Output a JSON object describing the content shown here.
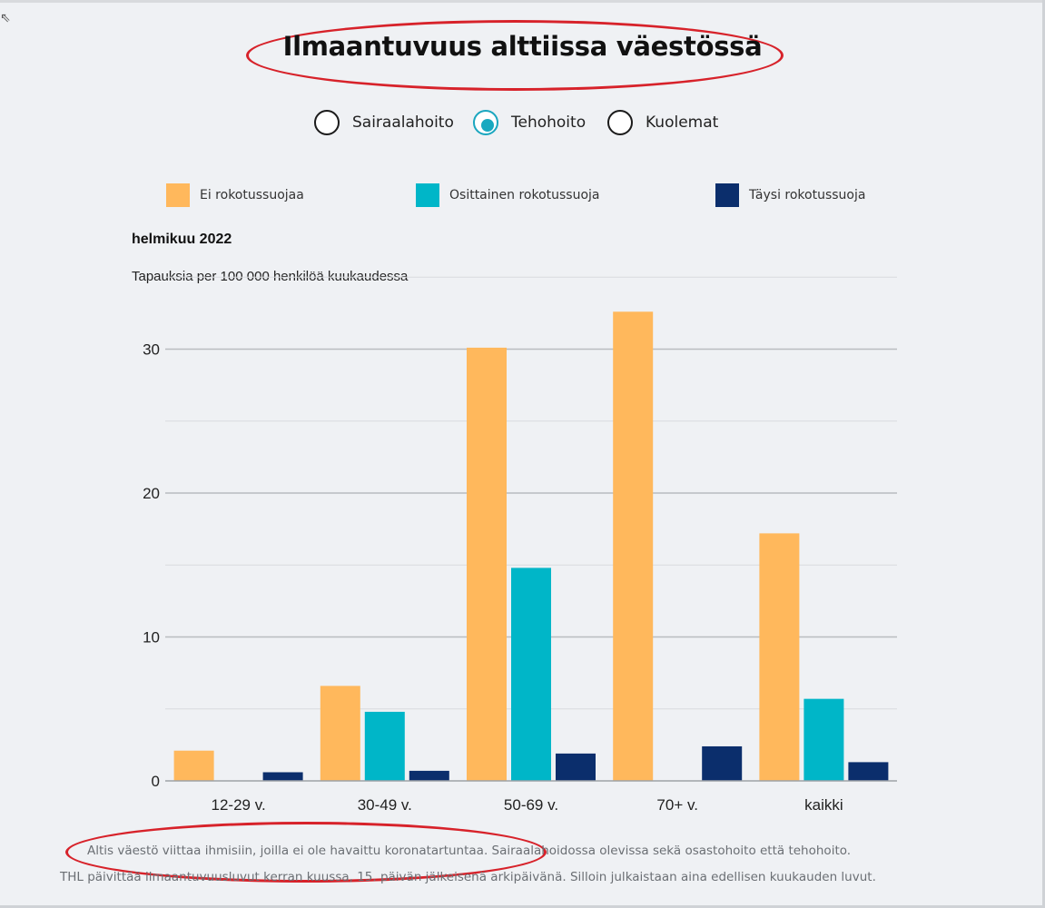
{
  "title": "Ilmaantuvuus alttiissa väestössä",
  "radio_options": [
    {
      "label": "Sairaalahoito",
      "selected": false
    },
    {
      "label": "Tehohoito",
      "selected": true
    },
    {
      "label": "Kuolemat",
      "selected": false
    }
  ],
  "legend": [
    {
      "label": "Ei rokotussuojaa",
      "color": "#ffb85c"
    },
    {
      "label": "Osittainen rokotussuoja",
      "color": "#00b6c8"
    },
    {
      "label": "Täysi rokotussuoja",
      "color": "#0b2e6c"
    }
  ],
  "period": "helmikuu 2022",
  "unit_label": "Tapauksia per 100 000 henkilöä kuukaudessa",
  "footnote_1": "Altis väestö viittaa ihmisiin, joilla ei ole havaittu koronatartuntaa. Sairaalahoidossa olevissa sekä osastohoito että tehohoito.",
  "footnote_2": "THL päivittää ilmaantuvuusluvut kerran kuussa, 15. päivän jälkeisenä arkipäivänä. Silloin julkaistaan aina edellisen kuukauden luvut.",
  "chart_data": {
    "type": "bar",
    "categories": [
      "12-29 v.",
      "30-49 v.",
      "50-69 v.",
      "70+ v.",
      "kaikki"
    ],
    "series": [
      {
        "name": "Ei rokotussuojaa",
        "color": "#ffb85c",
        "values": [
          2.1,
          6.6,
          30.1,
          32.6,
          17.2
        ]
      },
      {
        "name": "Osittainen rokotussuoja",
        "color": "#00b6c8",
        "values": [
          0,
          4.8,
          14.8,
          0,
          5.7
        ]
      },
      {
        "name": "Täysi rokotussuoja",
        "color": "#0b2e6c",
        "values": [
          0.6,
          0.7,
          1.9,
          2.4,
          1.3
        ]
      }
    ],
    "yticks": [
      0,
      10,
      20,
      30
    ],
    "ylim": [
      0,
      35
    ],
    "grid": true,
    "legend_position": "top"
  }
}
